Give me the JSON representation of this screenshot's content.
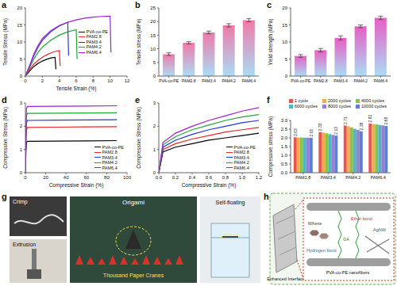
{
  "chart_data": [
    {
      "panel": "a",
      "type": "line",
      "xlabel": "Tensile Strain (%)",
      "ylabel": "Tensile Stress (MPa)",
      "xlim": [
        0,
        12
      ],
      "xticks": [
        0,
        2,
        4,
        6,
        8,
        10,
        12
      ],
      "ylim": [
        0,
        20
      ],
      "yticks": [
        0,
        5,
        10,
        15,
        20
      ],
      "legend": "center right",
      "series": [
        {
          "name": "PVA-co-PE",
          "color": "#000000",
          "x": [
            0,
            0.5,
            1,
            1.5,
            2,
            2.5,
            3,
            3.5,
            3.6
          ],
          "values": [
            0,
            1.5,
            2.8,
            3.7,
            4.4,
            4.9,
            5.3,
            5.5,
            2
          ]
        },
        {
          "name": "PAM2.8",
          "color": "#e8262b",
          "x": [
            0,
            0.5,
            1,
            1.5,
            2,
            2.5,
            3,
            3.5,
            4,
            4.1
          ],
          "values": [
            0,
            2,
            3.5,
            4.6,
            5.5,
            6.2,
            6.8,
            7.2,
            7.5,
            3
          ]
        },
        {
          "name": "PAM3.4",
          "color": "#2038d8",
          "x": [
            0,
            0.5,
            1,
            1.5,
            2,
            3,
            4,
            5,
            5.1
          ],
          "values": [
            0,
            3,
            6,
            8.5,
            10.5,
            13,
            14.7,
            15.8,
            6
          ]
        },
        {
          "name": "PAM4.2",
          "color": "#22a33a",
          "x": [
            0,
            0.5,
            1,
            1.5,
            2,
            3,
            4,
            5,
            6,
            6.1
          ],
          "values": [
            0,
            2.5,
            5,
            7,
            8.5,
            10.5,
            12,
            13,
            13.6,
            5
          ]
        },
        {
          "name": "PAM6.4",
          "color": "#a020d0",
          "x": [
            0,
            0.5,
            1,
            1.5,
            2,
            3,
            4,
            5,
            6,
            7,
            8,
            9,
            10,
            10.1
          ],
          "values": [
            0,
            3,
            6.5,
            9,
            11,
            13.3,
            14.8,
            15.8,
            16.5,
            17,
            17.3,
            17.5,
            17.6,
            7
          ]
        }
      ]
    },
    {
      "panel": "b",
      "type": "bar",
      "ylabel": "Tensile stress (MPa)",
      "categories": [
        "PVA-co-PE",
        "PAM2.8",
        "PAM3.4",
        "PAM4.2",
        "PAM6.4"
      ],
      "values": [
        8,
        12.2,
        16,
        18.6,
        20.5
      ],
      "error": [
        0.5,
        0.4,
        0.5,
        0.6,
        0.6
      ],
      "ylim": [
        0,
        25
      ],
      "yticks": [
        0,
        5,
        10,
        15,
        20,
        25
      ],
      "color": "#f07aa8"
    },
    {
      "panel": "c",
      "type": "bar",
      "ylabel": "Yield strength (MPa)",
      "categories": [
        "PVA-co-PE",
        "PAM2.8",
        "PAM3.4",
        "PAM4.2",
        "PAM6.4"
      ],
      "values": [
        5.9,
        7.6,
        11.2,
        14.6,
        17.1
      ],
      "error": [
        0.4,
        0.5,
        0.6,
        0.4,
        0.5
      ],
      "ylim": [
        0,
        20
      ],
      "yticks": [
        0,
        5,
        10,
        15,
        20
      ],
      "color": "#e85fc4"
    },
    {
      "panel": "d",
      "type": "line",
      "xlabel": "Compressive Strain (%)",
      "ylabel": "Compressive Stress (MPa)",
      "xlim": [
        0,
        100
      ],
      "xticks": [
        0,
        20,
        40,
        60,
        80,
        100
      ],
      "ylim": [
        0,
        3
      ],
      "yticks": [
        0,
        1,
        2,
        3
      ],
      "legend": "lower right",
      "series": [
        {
          "name": "PVA-co-PE",
          "color": "#000000",
          "x": [
            0,
            0.5,
            1,
            2,
            30,
            60,
            90
          ],
          "values": [
            0,
            0.9,
            1.3,
            1.35,
            1.36,
            1.37,
            1.38
          ]
        },
        {
          "name": "PAM2.8",
          "color": "#e8262b",
          "x": [
            0,
            0.5,
            1,
            2,
            30,
            60,
            90
          ],
          "values": [
            0,
            1.3,
            1.85,
            1.95,
            1.96,
            1.97,
            1.98
          ]
        },
        {
          "name": "PAM3.4",
          "color": "#2038d8",
          "x": [
            0,
            0.5,
            1,
            2,
            30,
            60,
            90
          ],
          "values": [
            0,
            1.5,
            2.15,
            2.25,
            2.26,
            2.27,
            2.28
          ]
        },
        {
          "name": "PAM4.2",
          "color": "#22a33a",
          "x": [
            0,
            0.5,
            1,
            2,
            30,
            60,
            90
          ],
          "values": [
            0,
            1.7,
            2.45,
            2.55,
            2.56,
            2.57,
            2.58
          ]
        },
        {
          "name": "PAM6.4",
          "color": "#a020d0",
          "x": [
            0,
            0.5,
            1,
            2,
            30,
            60,
            90
          ],
          "values": [
            0,
            1.9,
            2.75,
            2.85,
            2.86,
            2.87,
            2.88
          ]
        }
      ]
    },
    {
      "panel": "e",
      "type": "line",
      "xlabel": "Compressive Strain (%)",
      "ylabel": "Compressive Stress (MPa)",
      "xlim": [
        0,
        1.2
      ],
      "xticks": [
        {
          "value": 0,
          "label": "0.0"
        },
        0.2,
        0.4,
        0.6,
        0.8,
        {
          "value": 1,
          "label": "1.0"
        },
        1.2
      ],
      "ylim": [
        0,
        3
      ],
      "yticks": [
        0,
        1,
        2,
        3
      ],
      "legend": "lower right",
      "series": [
        {
          "name": "PVA-co-PE",
          "color": "#000000",
          "x": [
            0,
            0.05,
            0.2,
            0.4,
            0.6,
            0.8,
            1,
            1.2
          ],
          "values": [
            0,
            0.9,
            1.1,
            1.25,
            1.4,
            1.5,
            1.6,
            1.7
          ]
        },
        {
          "name": "PAM2.8",
          "color": "#e8262b",
          "x": [
            0,
            0.05,
            0.2,
            0.4,
            0.6,
            0.8,
            1,
            1.2
          ],
          "values": [
            0,
            1,
            1.25,
            1.45,
            1.6,
            1.75,
            1.85,
            1.95
          ]
        },
        {
          "name": "PAM3.4",
          "color": "#2038d8",
          "x": [
            0,
            0.05,
            0.2,
            0.4,
            0.6,
            0.8,
            1,
            1.2
          ],
          "values": [
            0,
            1.1,
            1.4,
            1.65,
            1.85,
            2,
            2.15,
            2.25
          ]
        },
        {
          "name": "PAM4.2",
          "color": "#22a33a",
          "x": [
            0,
            0.05,
            0.2,
            0.4,
            0.6,
            0.8,
            1,
            1.2
          ],
          "values": [
            0,
            1.2,
            1.55,
            1.85,
            2.05,
            2.25,
            2.4,
            2.5
          ]
        },
        {
          "name": "PAM6.4",
          "color": "#a020d0",
          "x": [
            0,
            0.05,
            0.2,
            0.4,
            0.6,
            0.8,
            1,
            1.2
          ],
          "values": [
            0,
            1.3,
            1.7,
            2,
            2.25,
            2.45,
            2.65,
            2.8
          ]
        }
      ]
    },
    {
      "panel": "f",
      "type": "bar",
      "ylabel": "Compressive stress (MPa)",
      "categories": [
        "PAM2.8",
        "PAM3.4",
        "PAM4.2",
        "PAM6.4"
      ],
      "ylim": [
        0,
        3
      ],
      "yticks": [
        {
          "value": 0,
          "label": "0.0"
        },
        0.5,
        {
          "value": 1,
          "label": "1.0"
        },
        1.5,
        {
          "value": 2,
          "label": "2.0"
        },
        2.5,
        {
          "value": 3,
          "label": "3.0"
        }
      ],
      "legend": "top",
      "series": [
        {
          "name": "1 cycle",
          "color": "#e8544f",
          "values": [
            2.03,
            2.33,
            2.71,
            2.82
          ],
          "data_labels": true
        },
        {
          "name": "2000 cycles",
          "color": "#f2a950",
          "values": [
            2.02,
            2.3,
            2.66,
            2.79
          ]
        },
        {
          "name": "4000 cycles",
          "color": "#8bc34a",
          "values": [
            2.02,
            2.26,
            2.6,
            2.77
          ]
        },
        {
          "name": "6000 cycles",
          "color": "#4bb8c4",
          "values": [
            2.01,
            2.21,
            2.52,
            2.74
          ]
        },
        {
          "name": "8000 cycles",
          "color": "#9a7fd1",
          "values": [
            2.01,
            2.17,
            2.45,
            2.71
          ]
        },
        {
          "name": "10000 cycles",
          "color": "#5b7fd6",
          "values": [
            2,
            2.13,
            2.38,
            2.68
          ],
          "value_labels": [
            "2.00",
            "2.13",
            "2.38",
            "2.68"
          ],
          "data_labels": true
        }
      ]
    }
  ],
  "photos": {
    "panel": "g",
    "crimp": "Crimp",
    "extrusion": "Extrusion",
    "origami": "Origami",
    "cranes": "Thousand Paper Cranes",
    "self_floating": "Self-floating"
  },
  "schematic": {
    "panel": "h",
    "interface": "Enhanced Interface",
    "mxene": "MXene",
    "ether": "Ether bond",
    "agnw": "AgNW",
    "hydrogen": "Hydrogen bond",
    "ga": "GA",
    "fiber": "PVA-co-PE nanofibers"
  }
}
